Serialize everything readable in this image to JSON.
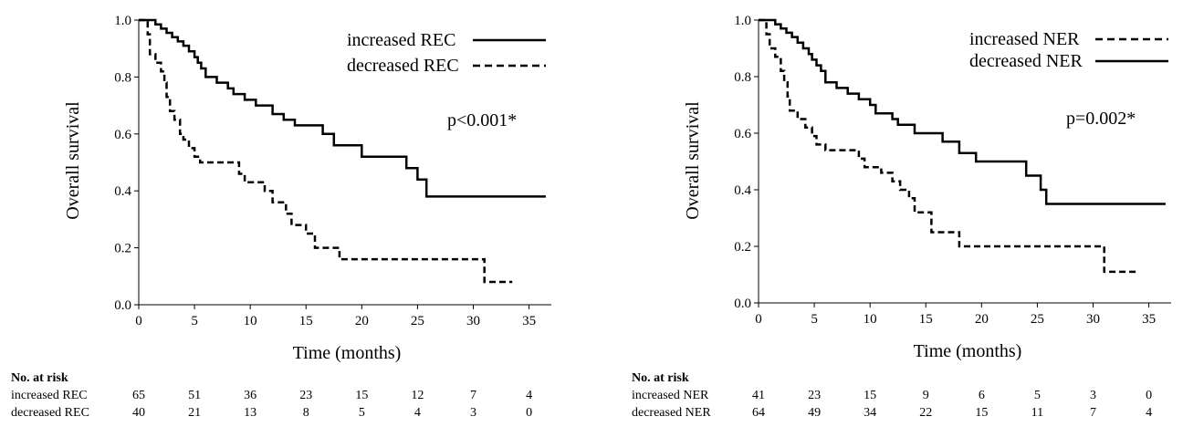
{
  "chart_data": [
    {
      "type": "line",
      "step": true,
      "xlabel": "Time (months)",
      "ylabel": "Overall survival",
      "xlim": [
        0,
        37
      ],
      "ylim": [
        0,
        1
      ],
      "xticks": [
        0,
        5,
        10,
        15,
        20,
        25,
        30,
        35
      ],
      "yticks": [
        "0.0",
        "0.2",
        "0.4",
        "0.6",
        "0.8",
        "1.0"
      ],
      "annotation": "p<0.001*",
      "legend_position": "top-right",
      "series": [
        {
          "name": "increased REC",
          "style": "solid",
          "points": [
            [
              0,
              1
            ],
            [
              1.5,
              1
            ],
            [
              1.5,
              0.985
            ],
            [
              2,
              0.985
            ],
            [
              2,
              0.97
            ],
            [
              2.5,
              0.97
            ],
            [
              2.5,
              0.955
            ],
            [
              3,
              0.955
            ],
            [
              3,
              0.94
            ],
            [
              3.5,
              0.94
            ],
            [
              3.5,
              0.925
            ],
            [
              4,
              0.925
            ],
            [
              4,
              0.91
            ],
            [
              4.5,
              0.91
            ],
            [
              4.5,
              0.89
            ],
            [
              5,
              0.89
            ],
            [
              5,
              0.87
            ],
            [
              5.3,
              0.87
            ],
            [
              5.3,
              0.85
            ],
            [
              5.6,
              0.85
            ],
            [
              5.6,
              0.83
            ],
            [
              6,
              0.83
            ],
            [
              6,
              0.8
            ],
            [
              7,
              0.8
            ],
            [
              7,
              0.78
            ],
            [
              8,
              0.78
            ],
            [
              8,
              0.76
            ],
            [
              8.5,
              0.76
            ],
            [
              8.5,
              0.74
            ],
            [
              9.5,
              0.74
            ],
            [
              9.5,
              0.72
            ],
            [
              10.5,
              0.72
            ],
            [
              10.5,
              0.7
            ],
            [
              12,
              0.7
            ],
            [
              12,
              0.67
            ],
            [
              13,
              0.67
            ],
            [
              13,
              0.65
            ],
            [
              14,
              0.65
            ],
            [
              14,
              0.63
            ],
            [
              16.5,
              0.63
            ],
            [
              16.5,
              0.6
            ],
            [
              17.5,
              0.6
            ],
            [
              17.5,
              0.56
            ],
            [
              20,
              0.56
            ],
            [
              20,
              0.52
            ],
            [
              24,
              0.52
            ],
            [
              24,
              0.48
            ],
            [
              25,
              0.48
            ],
            [
              25,
              0.44
            ],
            [
              25.8,
              0.44
            ],
            [
              25.8,
              0.38
            ],
            [
              36.5,
              0.38
            ]
          ]
        },
        {
          "name": "decreased REC",
          "style": "dashed",
          "points": [
            [
              0,
              1
            ],
            [
              0.8,
              1
            ],
            [
              0.8,
              0.95
            ],
            [
              1,
              0.95
            ],
            [
              1,
              0.88
            ],
            [
              1.5,
              0.88
            ],
            [
              1.5,
              0.85
            ],
            [
              2,
              0.85
            ],
            [
              2,
              0.82
            ],
            [
              2.3,
              0.82
            ],
            [
              2.3,
              0.78
            ],
            [
              2.5,
              0.78
            ],
            [
              2.5,
              0.73
            ],
            [
              2.8,
              0.73
            ],
            [
              2.8,
              0.68
            ],
            [
              3.2,
              0.68
            ],
            [
              3.2,
              0.65
            ],
            [
              3.7,
              0.65
            ],
            [
              3.7,
              0.6
            ],
            [
              4,
              0.6
            ],
            [
              4,
              0.58
            ],
            [
              4.5,
              0.58
            ],
            [
              4.5,
              0.55
            ],
            [
              5,
              0.55
            ],
            [
              5,
              0.52
            ],
            [
              5.5,
              0.52
            ],
            [
              5.5,
              0.5
            ],
            [
              9,
              0.5
            ],
            [
              9,
              0.46
            ],
            [
              9.5,
              0.46
            ],
            [
              9.5,
              0.43
            ],
            [
              11.3,
              0.43
            ],
            [
              11.3,
              0.4
            ],
            [
              12,
              0.4
            ],
            [
              12,
              0.36
            ],
            [
              13.2,
              0.36
            ],
            [
              13.2,
              0.32
            ],
            [
              13.7,
              0.32
            ],
            [
              13.7,
              0.28
            ],
            [
              15,
              0.28
            ],
            [
              15,
              0.25
            ],
            [
              15.8,
              0.25
            ],
            [
              15.8,
              0.2
            ],
            [
              18,
              0.2
            ],
            [
              18,
              0.16
            ],
            [
              31,
              0.16
            ],
            [
              31,
              0.08
            ],
            [
              33.5,
              0.08
            ]
          ]
        }
      ],
      "risk_table": {
        "header": "No. at risk",
        "rows": [
          {
            "label": "increased REC",
            "values": [
              "65",
              "51",
              "36",
              "23",
              "15",
              "12",
              "7",
              "4"
            ]
          },
          {
            "label": "decreased REC",
            "values": [
              "40",
              "21",
              "13",
              "8",
              "5",
              "4",
              "3",
              "0"
            ]
          }
        ]
      }
    },
    {
      "type": "line",
      "step": true,
      "xlabel": "Time (months)",
      "ylabel": "Overall survival",
      "xlim": [
        0,
        37
      ],
      "ylim": [
        0,
        1
      ],
      "xticks": [
        0,
        5,
        10,
        15,
        20,
        25,
        30,
        35
      ],
      "yticks": [
        "0.0",
        "0.2",
        "0.4",
        "0.6",
        "0.8",
        "1.0"
      ],
      "annotation": "p=0.002*",
      "legend_position": "top-right",
      "series": [
        {
          "name": "increased NER",
          "style": "dashed",
          "points": [
            [
              0,
              1
            ],
            [
              0.7,
              1
            ],
            [
              0.7,
              0.95
            ],
            [
              1,
              0.95
            ],
            [
              1,
              0.9
            ],
            [
              1.5,
              0.9
            ],
            [
              1.5,
              0.87
            ],
            [
              2,
              0.87
            ],
            [
              2,
              0.82
            ],
            [
              2.3,
              0.82
            ],
            [
              2.3,
              0.78
            ],
            [
              2.6,
              0.78
            ],
            [
              2.6,
              0.73
            ],
            [
              2.8,
              0.73
            ],
            [
              2.8,
              0.68
            ],
            [
              3.5,
              0.68
            ],
            [
              3.5,
              0.65
            ],
            [
              4.2,
              0.65
            ],
            [
              4.2,
              0.62
            ],
            [
              4.8,
              0.62
            ],
            [
              4.8,
              0.59
            ],
            [
              5.2,
              0.59
            ],
            [
              5.2,
              0.56
            ],
            [
              6,
              0.56
            ],
            [
              6,
              0.54
            ],
            [
              9,
              0.54
            ],
            [
              9,
              0.51
            ],
            [
              9.5,
              0.51
            ],
            [
              9.5,
              0.48
            ],
            [
              11,
              0.48
            ],
            [
              11,
              0.46
            ],
            [
              12,
              0.46
            ],
            [
              12,
              0.43
            ],
            [
              12.7,
              0.43
            ],
            [
              12.7,
              0.4
            ],
            [
              13.5,
              0.4
            ],
            [
              13.5,
              0.37
            ],
            [
              14,
              0.37
            ],
            [
              14,
              0.32
            ],
            [
              15.5,
              0.32
            ],
            [
              15.5,
              0.25
            ],
            [
              18,
              0.25
            ],
            [
              18,
              0.2
            ],
            [
              31,
              0.2
            ],
            [
              31,
              0.11
            ],
            [
              34,
              0.11
            ]
          ]
        },
        {
          "name": "decreased NER",
          "style": "solid",
          "points": [
            [
              0,
              1
            ],
            [
              1.5,
              1
            ],
            [
              1.5,
              0.985
            ],
            [
              2,
              0.985
            ],
            [
              2,
              0.97
            ],
            [
              2.5,
              0.97
            ],
            [
              2.5,
              0.955
            ],
            [
              3,
              0.955
            ],
            [
              3,
              0.94
            ],
            [
              3.5,
              0.94
            ],
            [
              3.5,
              0.92
            ],
            [
              4,
              0.92
            ],
            [
              4,
              0.9
            ],
            [
              4.5,
              0.9
            ],
            [
              4.5,
              0.88
            ],
            [
              4.8,
              0.88
            ],
            [
              4.8,
              0.86
            ],
            [
              5.2,
              0.86
            ],
            [
              5.2,
              0.84
            ],
            [
              5.6,
              0.84
            ],
            [
              5.6,
              0.82
            ],
            [
              6,
              0.82
            ],
            [
              6,
              0.78
            ],
            [
              7,
              0.78
            ],
            [
              7,
              0.76
            ],
            [
              8,
              0.76
            ],
            [
              8,
              0.74
            ],
            [
              9,
              0.74
            ],
            [
              9,
              0.72
            ],
            [
              10,
              0.72
            ],
            [
              10,
              0.7
            ],
            [
              10.5,
              0.7
            ],
            [
              10.5,
              0.67
            ],
            [
              12,
              0.67
            ],
            [
              12,
              0.65
            ],
            [
              12.5,
              0.65
            ],
            [
              12.5,
              0.63
            ],
            [
              14,
              0.63
            ],
            [
              14,
              0.6
            ],
            [
              16.5,
              0.6
            ],
            [
              16.5,
              0.57
            ],
            [
              18,
              0.57
            ],
            [
              18,
              0.53
            ],
            [
              19.5,
              0.53
            ],
            [
              19.5,
              0.5
            ],
            [
              24,
              0.5
            ],
            [
              24,
              0.45
            ],
            [
              25.3,
              0.45
            ],
            [
              25.3,
              0.4
            ],
            [
              25.8,
              0.4
            ],
            [
              25.8,
              0.35
            ],
            [
              36.5,
              0.35
            ]
          ]
        }
      ],
      "risk_table": {
        "header": "No. at risk",
        "rows": [
          {
            "label": "increased NER",
            "values": [
              "41",
              "23",
              "15",
              "9",
              "6",
              "5",
              "3",
              "0"
            ]
          },
          {
            "label": "decreased NER",
            "values": [
              "64",
              "49",
              "34",
              "22",
              "15",
              "11",
              "7",
              "4"
            ]
          }
        ]
      }
    }
  ]
}
